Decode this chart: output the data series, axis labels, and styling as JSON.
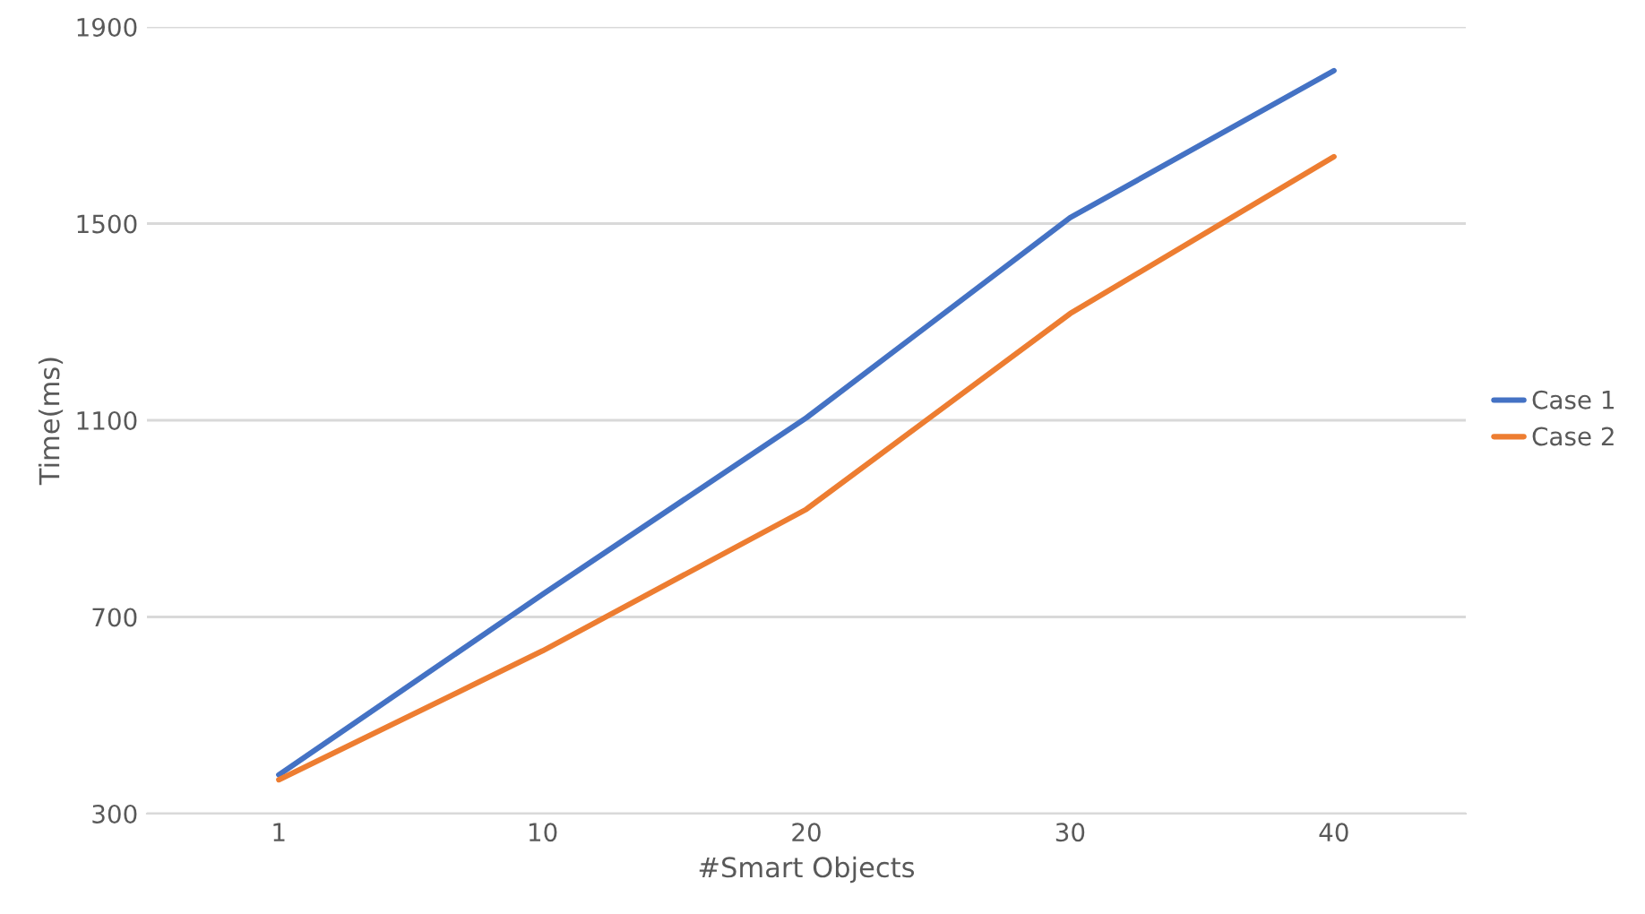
{
  "chart_data": {
    "type": "line",
    "xlabel": "#Smart Objects",
    "ylabel": "Time(ms)",
    "categories": [
      "1",
      "10",
      "20",
      "30",
      "40"
    ],
    "series": [
      {
        "name": "Case 1",
        "color": "#4472c4",
        "values": [
          379,
          746,
          1105,
          1512,
          1811
        ]
      },
      {
        "name": "Case 2",
        "color": "#ed7d31",
        "values": [
          369,
          631,
          919,
          1317,
          1636
        ]
      }
    ],
    "ylim": [
      300,
      1900
    ],
    "yticks": [
      300,
      700,
      1100,
      1500,
      1900
    ],
    "grid": "y",
    "legend": "right",
    "marker": "none",
    "line_style": "solid"
  }
}
